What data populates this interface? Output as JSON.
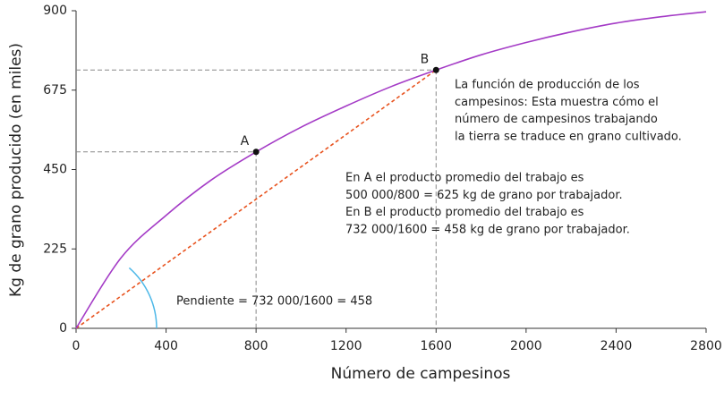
{
  "chart_data": {
    "type": "line",
    "x_label": "Número de campesinos",
    "y_label": "Kg de grano producido (en miles)",
    "x": [
      0,
      200,
      400,
      600,
      800,
      1000,
      1200,
      1400,
      1600,
      1800,
      2000,
      2200,
      2400,
      2600,
      2800
    ],
    "values": [
      0,
      200,
      320,
      420,
      500,
      570,
      630,
      685,
      732,
      775,
      810,
      840,
      865,
      883,
      897
    ],
    "color": "#a43bc6",
    "xlim": [
      0,
      2800
    ],
    "xticks": [
      0,
      400,
      800,
      1200,
      1600,
      2000,
      2400,
      2800
    ],
    "ylim": [
      0,
      900
    ],
    "yticks": [
      0,
      225,
      450,
      675,
      900
    ],
    "points": [
      {
        "label": "A",
        "x": 800,
        "y": 500
      },
      {
        "label": "B",
        "x": 1600,
        "y": 732
      }
    ],
    "slope_color": "#e8531f",
    "annotations": [
      [
        "La función de producción de los",
        "campesinos: Esta muestra cómo el",
        "número de campesinos trabajando",
        "la tierra se traduce en grano cultivado."
      ],
      [
        "En A el producto promedio del trabajo es",
        "500 000/800 = 625 kg de grano por trabajador.",
        "En B el producto promedio del trabajo es",
        "732 000/1600 = 458 kg de grano por trabajador."
      ]
    ],
    "slope_label": "Pendiente = 732 000/1600 = 458"
  }
}
